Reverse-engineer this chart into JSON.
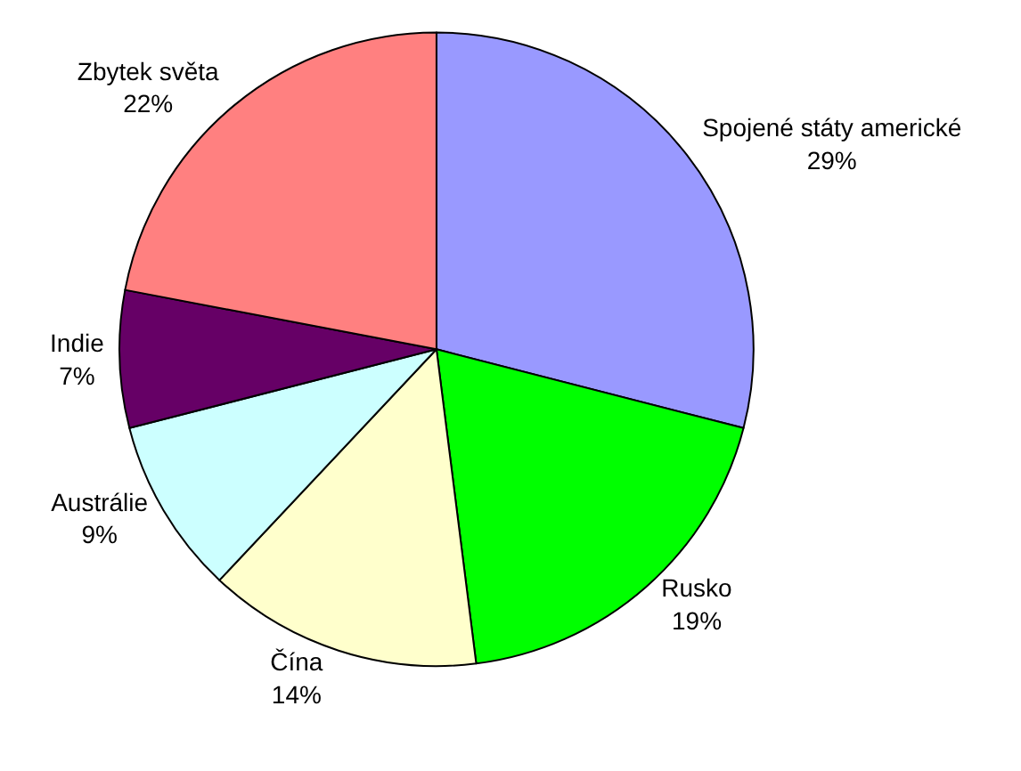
{
  "chart_data": {
    "type": "pie",
    "categories": [
      "Spojené státy americké",
      "Rusko",
      "Čína",
      "Austrálie",
      "Indie",
      "Zbytek světa"
    ],
    "values": [
      29,
      19,
      14,
      9,
      7,
      22
    ],
    "value_labels": [
      "29%",
      "19%",
      "14%",
      "9%",
      "7%",
      "22%"
    ],
    "colors": [
      "#9999ff",
      "#00ff00",
      "#ffffcc",
      "#ccffff",
      "#660066",
      "#ff8080"
    ],
    "legend": false
  }
}
